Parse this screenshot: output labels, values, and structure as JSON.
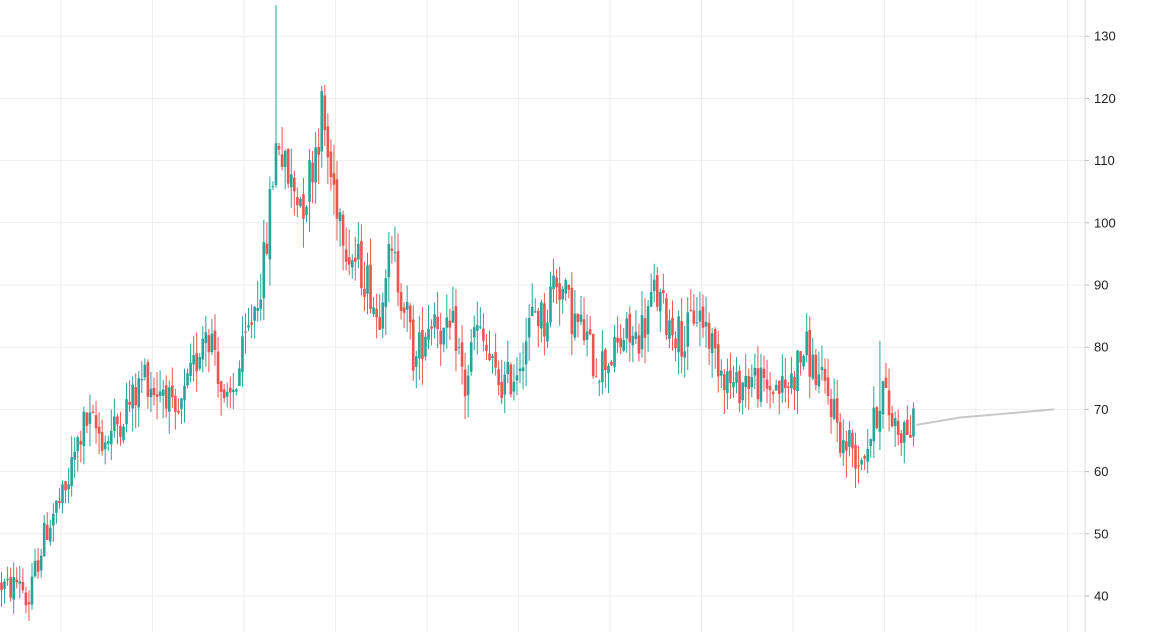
{
  "chart_data": {
    "type": "candlestick",
    "y_axis": {
      "position": "right",
      "ylim": [
        36,
        135
      ],
      "ticks": [
        40,
        50,
        60,
        70,
        80,
        90,
        100,
        110,
        120,
        130
      ],
      "tick_labels": [
        "40",
        "50",
        "60",
        "70",
        "80",
        "90",
        "100",
        "110",
        "120",
        "130"
      ]
    },
    "grid": true,
    "colors": {
      "up": "#26a69a",
      "down": "#ef5350",
      "forecast": "#c8c8c8",
      "grid": "#eeeeee",
      "axis": "#dddddd"
    },
    "price_path": [
      [
        0,
        42
      ],
      [
        10,
        41
      ],
      [
        20,
        43
      ],
      [
        28,
        38
      ],
      [
        35,
        44
      ],
      [
        45,
        50
      ],
      [
        55,
        54
      ],
      [
        65,
        56
      ],
      [
        75,
        63
      ],
      [
        85,
        68
      ],
      [
        95,
        67
      ],
      [
        105,
        65
      ],
      [
        115,
        67
      ],
      [
        125,
        70
      ],
      [
        135,
        72
      ],
      [
        145,
        76
      ],
      [
        155,
        73
      ],
      [
        165,
        74
      ],
      [
        175,
        67
      ],
      [
        185,
        72
      ],
      [
        195,
        77
      ],
      [
        205,
        84
      ],
      [
        215,
        80
      ],
      [
        225,
        69
      ],
      [
        235,
        74
      ],
      [
        245,
        80
      ],
      [
        255,
        87
      ],
      [
        265,
        94
      ],
      [
        273,
        108
      ],
      [
        278,
        115
      ],
      [
        285,
        108
      ],
      [
        295,
        105
      ],
      [
        305,
        104
      ],
      [
        315,
        112
      ],
      [
        322,
        118
      ],
      [
        330,
        108
      ],
      [
        340,
        102
      ],
      [
        350,
        95
      ],
      [
        360,
        93
      ],
      [
        370,
        90
      ],
      [
        378,
        84
      ],
      [
        385,
        94
      ],
      [
        395,
        93
      ],
      [
        405,
        87
      ],
      [
        415,
        77
      ],
      [
        425,
        83
      ],
      [
        435,
        86
      ],
      [
        445,
        81
      ],
      [
        455,
        83
      ],
      [
        465,
        73
      ],
      [
        475,
        83
      ],
      [
        485,
        80
      ],
      [
        495,
        75
      ],
      [
        505,
        74
      ],
      [
        515,
        76
      ],
      [
        525,
        81
      ],
      [
        535,
        86
      ],
      [
        545,
        84
      ],
      [
        555,
        92
      ],
      [
        565,
        88
      ],
      [
        575,
        84
      ],
      [
        585,
        82
      ],
      [
        595,
        77
      ],
      [
        605,
        78
      ],
      [
        615,
        79
      ],
      [
        625,
        82
      ],
      [
        635,
        81
      ],
      [
        645,
        84
      ],
      [
        655,
        89
      ],
      [
        665,
        85
      ],
      [
        675,
        83
      ],
      [
        685,
        81
      ],
      [
        695,
        86
      ],
      [
        705,
        84
      ],
      [
        715,
        79
      ],
      [
        725,
        76
      ],
      [
        735,
        73
      ],
      [
        745,
        75
      ],
      [
        755,
        75
      ],
      [
        765,
        73
      ],
      [
        775,
        74
      ],
      [
        785,
        73
      ],
      [
        795,
        76
      ],
      [
        805,
        80
      ],
      [
        815,
        76
      ],
      [
        825,
        73
      ],
      [
        835,
        70
      ],
      [
        842,
        64
      ],
      [
        850,
        65
      ],
      [
        858,
        62
      ],
      [
        866,
        64
      ],
      [
        875,
        68
      ],
      [
        882,
        74
      ],
      [
        890,
        69
      ],
      [
        900,
        67
      ],
      [
        910,
        67
      ],
      [
        916,
        67.5
      ]
    ],
    "wick_spikes": [
      {
        "day": 277,
        "high": 135
      },
      {
        "day": 322,
        "high": 122
      },
      {
        "day": 880,
        "high": 81
      },
      {
        "day": 845,
        "low": 59
      },
      {
        "day": 29,
        "low": 36
      }
    ],
    "forecast_line": [
      [
        916,
        67.5
      ],
      [
        960,
        68.7
      ],
      [
        1054,
        70
      ]
    ],
    "x_range": [
      0,
      1054
    ]
  }
}
